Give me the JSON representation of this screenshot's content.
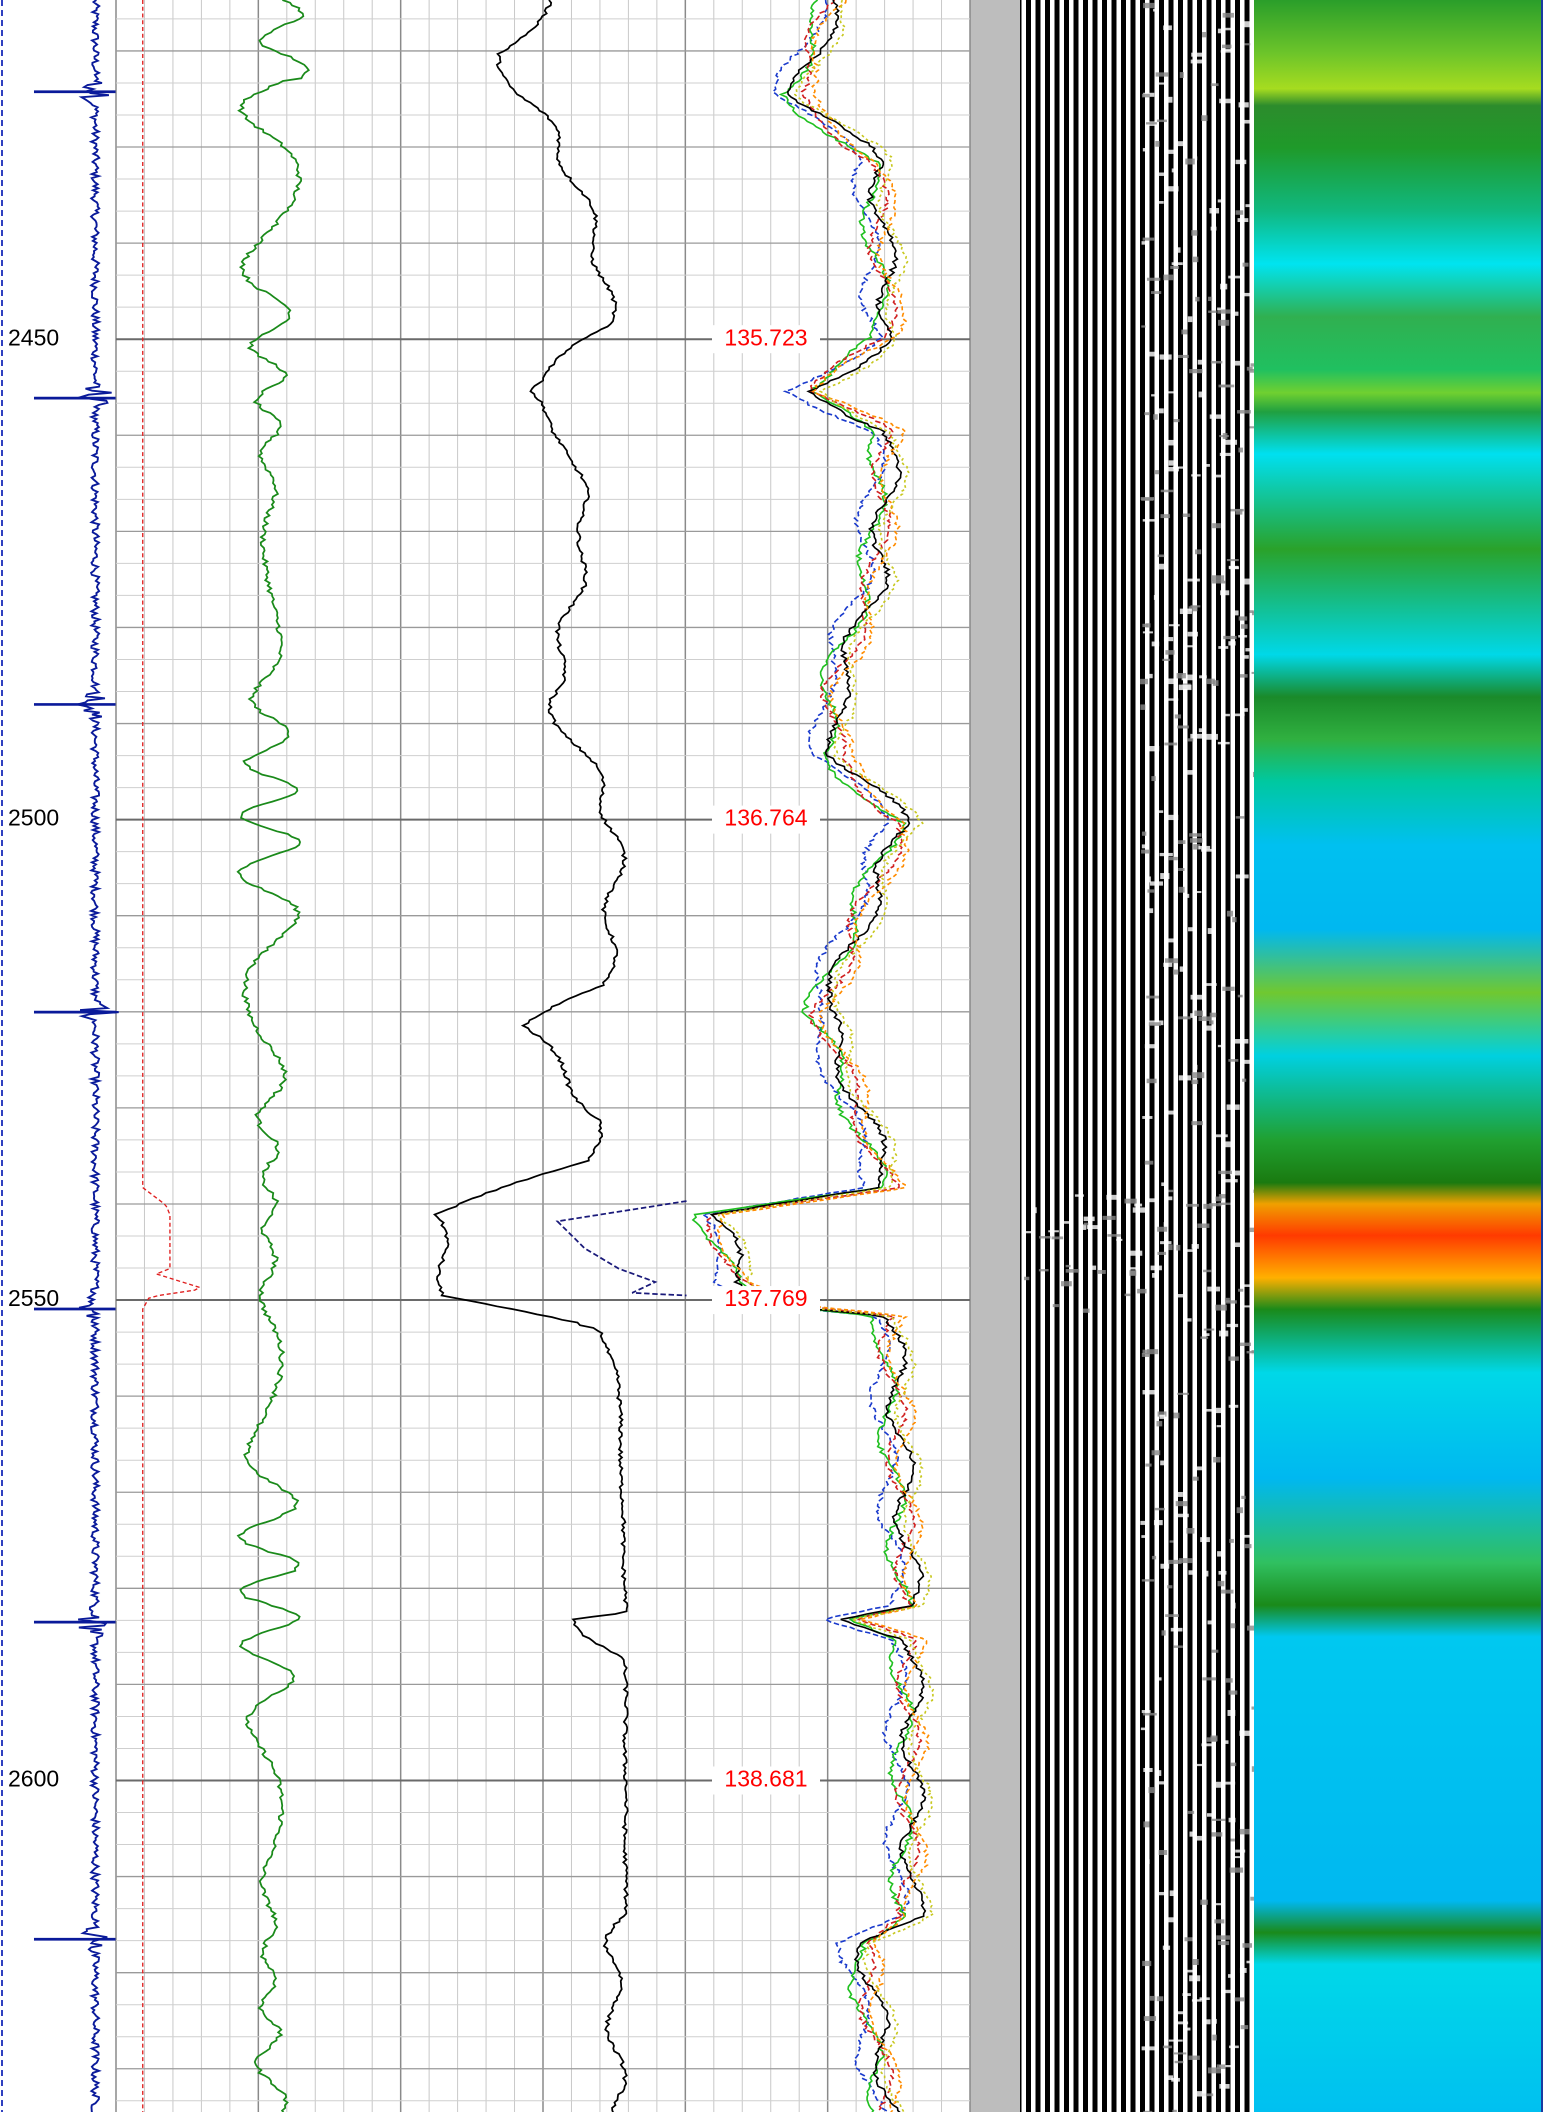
{
  "chart_data": {
    "type": "well-log",
    "ylim": [
      2414.7,
      2634.5
    ],
    "yticks": [
      2450,
      2500,
      2550,
      2600
    ],
    "grid": true,
    "annotations": [
      {
        "depth": 2450,
        "label": "135.723"
      },
      {
        "depth": 2500,
        "label": "136.764"
      },
      {
        "depth": 2550,
        "label": "137.769"
      },
      {
        "depth": 2600,
        "label": "138.681"
      }
    ]
  }
}
